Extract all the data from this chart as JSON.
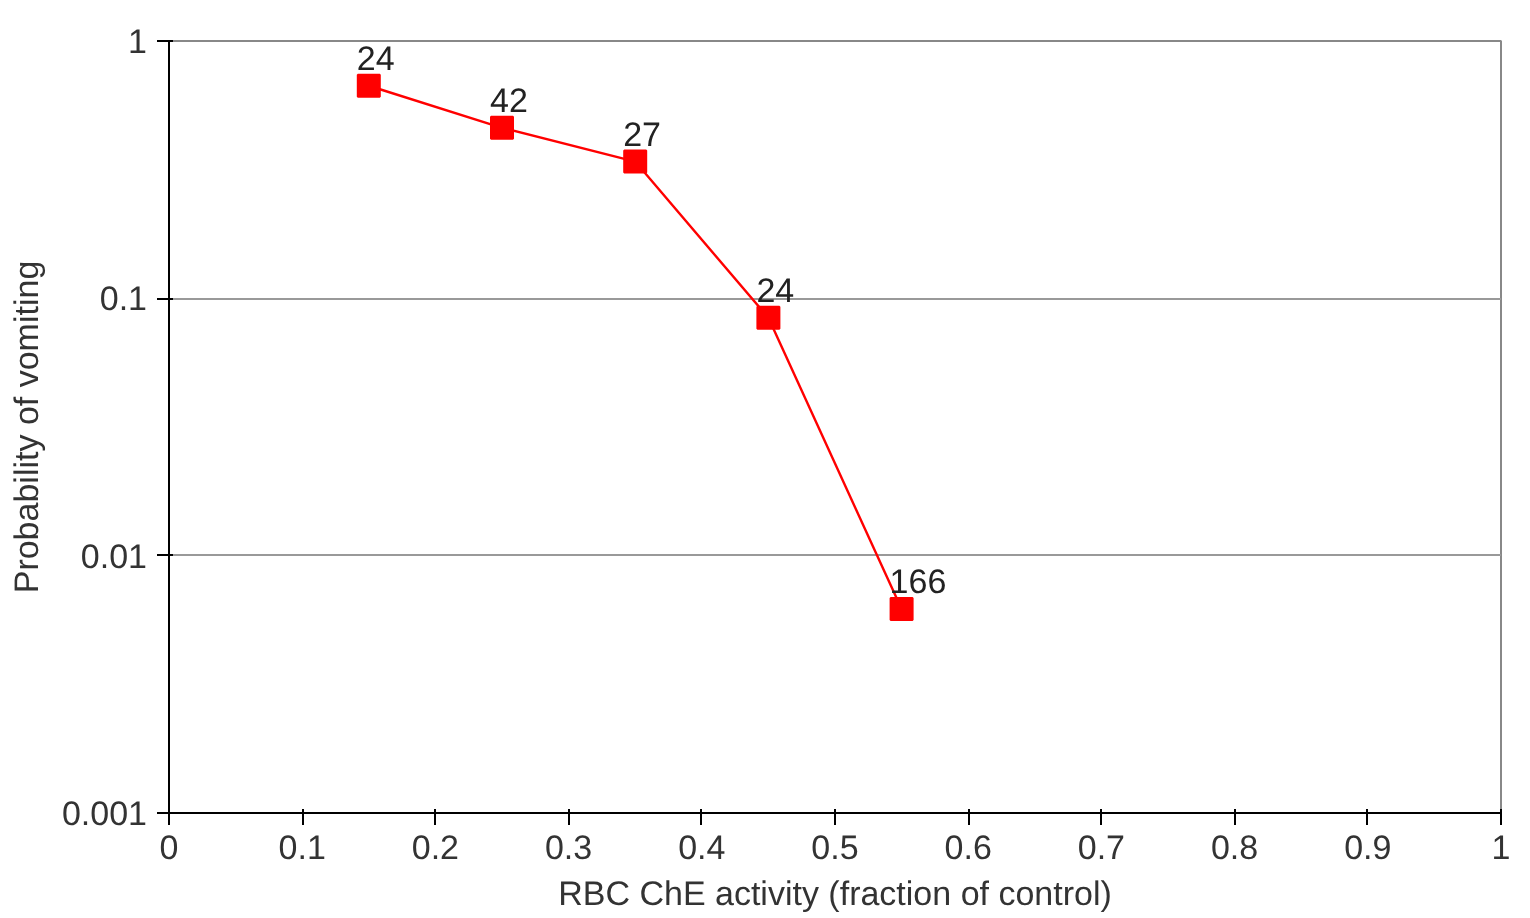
{
  "chart_data": {
    "type": "line",
    "xlabel": "RBC ChE activity (fraction of control)",
    "ylabel": "Probability of vomiting",
    "x": [
      0.15,
      0.25,
      0.35,
      0.45,
      0.55
    ],
    "series": [
      {
        "color": "#ff0000",
        "values": [
          0.67,
          0.46,
          0.34,
          0.084,
          0.0062
        ]
      }
    ],
    "annotations": [
      {
        "text": "24",
        "x": 0.15,
        "y": 0.67
      },
      {
        "text": "42",
        "x": 0.25,
        "y": 0.46
      },
      {
        "text": "27",
        "x": 0.35,
        "y": 0.34
      },
      {
        "text": "24",
        "x": 0.45,
        "y": 0.084
      },
      {
        "text": "166",
        "x": 0.55,
        "y": 0.0062
      }
    ],
    "xlim": [
      0,
      1
    ],
    "xticks": [
      0,
      0.1,
      0.2,
      0.3,
      0.4,
      0.5,
      0.6,
      0.7,
      0.8,
      0.9,
      1
    ],
    "ylim": [
      0.001,
      1
    ],
    "yticks": [
      0.001,
      0.01,
      0.1,
      1
    ],
    "log": "y",
    "grid": "y",
    "marker": "square",
    "line_style": "solid"
  }
}
